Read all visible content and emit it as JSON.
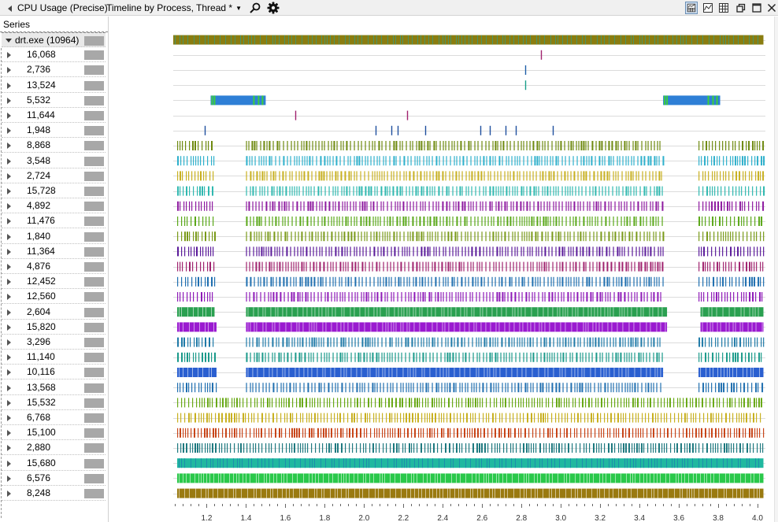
{
  "titlebar": {
    "graph_name": "CPU Usage (Precise)",
    "preset": "Timeline by Process, Thread *",
    "icons": [
      "search-icon",
      "gear-icon",
      "graph-and-table-icon",
      "graph-only-icon",
      "table-only-icon",
      "restore-icon",
      "maximize-icon",
      "close-icon"
    ]
  },
  "series_panel": {
    "header": "Series",
    "process": "drt.exe (10964)",
    "swatch_color": "#a8a8a8"
  },
  "chart_data": {
    "type": "timeline",
    "x_ticks": [
      "1.2",
      "1.4",
      "1.6",
      "1.8",
      "2.0",
      "2.2",
      "2.4",
      "2.6",
      "2.8",
      "3.0",
      "3.2",
      "3.4",
      "3.6",
      "3.8",
      "4.0"
    ],
    "x_range": [
      1.03,
      4.04
    ],
    "grid": true,
    "rows": [
      {
        "label": "drt.exe (10964)",
        "is_process": true,
        "color": "#8a7d10",
        "color2": "#2f9e8c",
        "pattern": "dense",
        "segments": [
          [
            1.03,
            4.03
          ]
        ]
      },
      {
        "label": "16,068",
        "color": "#a0226e",
        "pattern": "events",
        "events": [
          2.9
        ]
      },
      {
        "label": "2,736",
        "color": "#1f5fa8",
        "pattern": "events",
        "events": [
          2.82
        ]
      },
      {
        "label": "13,524",
        "color": "#1a9e8a",
        "pattern": "events",
        "events": [
          2.82
        ]
      },
      {
        "label": "5,532",
        "color": "#2e7fd6",
        "color2": "#3ccf3c",
        "pattern": "block",
        "segments": [
          [
            1.22,
            1.5
          ],
          [
            3.52,
            3.81
          ]
        ]
      },
      {
        "label": "11,644",
        "color": "#a0226e",
        "pattern": "events",
        "events": [
          1.65,
          2.22
        ]
      },
      {
        "label": "1,948",
        "color": "#1f4f9e",
        "pattern": "events",
        "events": [
          1.19,
          2.06,
          2.14,
          2.17,
          2.31,
          2.59,
          2.64,
          2.72,
          2.77,
          2.96
        ]
      },
      {
        "label": "8,868",
        "color": "#6f8a10",
        "pattern": "ticks",
        "segments": [
          [
            1.05,
            1.24
          ],
          [
            1.4,
            3.52
          ],
          [
            3.7,
            4.03
          ]
        ]
      },
      {
        "label": "3,548",
        "color": "#2eb0cc",
        "pattern": "ticks",
        "segments": [
          [
            1.05,
            1.24
          ],
          [
            1.4,
            3.52
          ],
          [
            3.7,
            4.03
          ]
        ]
      },
      {
        "label": "2,724",
        "color": "#c8b020",
        "pattern": "ticks",
        "segments": [
          [
            1.05,
            1.24
          ],
          [
            1.4,
            3.52
          ],
          [
            3.7,
            4.03
          ]
        ]
      },
      {
        "label": "15,728",
        "color": "#2fb8b0",
        "pattern": "ticks",
        "segments": [
          [
            1.05,
            1.24
          ],
          [
            1.4,
            3.52
          ],
          [
            3.7,
            4.03
          ]
        ]
      },
      {
        "label": "4,892",
        "color": "#8e1aa0",
        "pattern": "ticks",
        "segments": [
          [
            1.05,
            1.24
          ],
          [
            1.4,
            3.52
          ],
          [
            3.7,
            4.03
          ]
        ]
      },
      {
        "label": "11,476",
        "color": "#5aa818",
        "pattern": "ticks",
        "segments": [
          [
            1.05,
            1.24
          ],
          [
            1.4,
            3.52
          ],
          [
            3.7,
            4.03
          ]
        ]
      },
      {
        "label": "1,840",
        "color": "#7a9a18",
        "pattern": "ticks",
        "segments": [
          [
            1.05,
            1.24
          ],
          [
            1.4,
            3.52
          ],
          [
            3.7,
            4.03
          ]
        ]
      },
      {
        "label": "11,364",
        "color": "#5a1a9a",
        "pattern": "ticks",
        "segments": [
          [
            1.05,
            1.24
          ],
          [
            1.4,
            3.52
          ],
          [
            3.7,
            4.03
          ]
        ]
      },
      {
        "label": "4,876",
        "color": "#a0226e",
        "pattern": "ticks",
        "segments": [
          [
            1.05,
            1.24
          ],
          [
            1.4,
            3.52
          ],
          [
            3.7,
            4.03
          ]
        ]
      },
      {
        "label": "12,452",
        "color": "#1f6fb0",
        "pattern": "ticks",
        "segments": [
          [
            1.05,
            1.24
          ],
          [
            1.4,
            3.52
          ],
          [
            3.7,
            4.03
          ]
        ]
      },
      {
        "label": "12,560",
        "color": "#8e1ab8",
        "pattern": "ticks",
        "segments": [
          [
            1.05,
            1.24
          ],
          [
            1.4,
            3.52
          ],
          [
            3.7,
            4.03
          ]
        ]
      },
      {
        "label": "2,604",
        "color": "#2aa050",
        "pattern": "dense",
        "segments": [
          [
            1.05,
            1.24
          ],
          [
            1.4,
            3.54
          ],
          [
            3.71,
            4.03
          ]
        ]
      },
      {
        "label": "15,820",
        "color": "#9a1ad0",
        "pattern": "dense",
        "segments": [
          [
            1.05,
            1.25
          ],
          [
            1.4,
            3.54
          ],
          [
            3.71,
            4.03
          ]
        ]
      },
      {
        "label": "3,296",
        "color": "#1f7aa8",
        "pattern": "ticks",
        "segments": [
          [
            1.05,
            1.25
          ],
          [
            1.4,
            3.52
          ],
          [
            3.7,
            4.03
          ]
        ]
      },
      {
        "label": "11,140",
        "color": "#1a9a8a",
        "pattern": "ticks",
        "segments": [
          [
            1.05,
            1.25
          ],
          [
            1.4,
            3.52
          ],
          [
            3.7,
            4.03
          ]
        ]
      },
      {
        "label": "10,116",
        "color": "#2a5fd0",
        "pattern": "dense",
        "segments": [
          [
            1.05,
            1.25
          ],
          [
            1.4,
            3.52
          ],
          [
            3.7,
            4.03
          ]
        ]
      },
      {
        "label": "13,568",
        "color": "#1f6fb0",
        "pattern": "ticks",
        "segments": [
          [
            1.05,
            1.25
          ],
          [
            1.4,
            3.52
          ],
          [
            3.7,
            4.03
          ]
        ]
      },
      {
        "label": "15,532",
        "color": "#6aaa18",
        "pattern": "ticks",
        "segments": [
          [
            1.05,
            4.03
          ]
        ]
      },
      {
        "label": "6,768",
        "color": "#c8b020",
        "pattern": "ticks",
        "segments": [
          [
            1.05,
            4.03
          ]
        ]
      },
      {
        "label": "15,100",
        "color": "#c8461a",
        "pattern": "ticks",
        "segments": [
          [
            1.05,
            4.03
          ]
        ]
      },
      {
        "label": "2,880",
        "color": "#1f7a80",
        "pattern": "ticks",
        "segments": [
          [
            1.05,
            4.03
          ]
        ]
      },
      {
        "label": "15,680",
        "color": "#20b8a0",
        "color2": "#1f7ab0",
        "pattern": "dense",
        "segments": [
          [
            1.05,
            4.03
          ]
        ]
      },
      {
        "label": "6,576",
        "color": "#2ac84a",
        "pattern": "dense",
        "segments": [
          [
            1.05,
            4.03
          ]
        ]
      },
      {
        "label": "8,248",
        "color": "#9a7a10",
        "pattern": "dense",
        "segments": [
          [
            1.05,
            4.03
          ]
        ]
      }
    ]
  }
}
